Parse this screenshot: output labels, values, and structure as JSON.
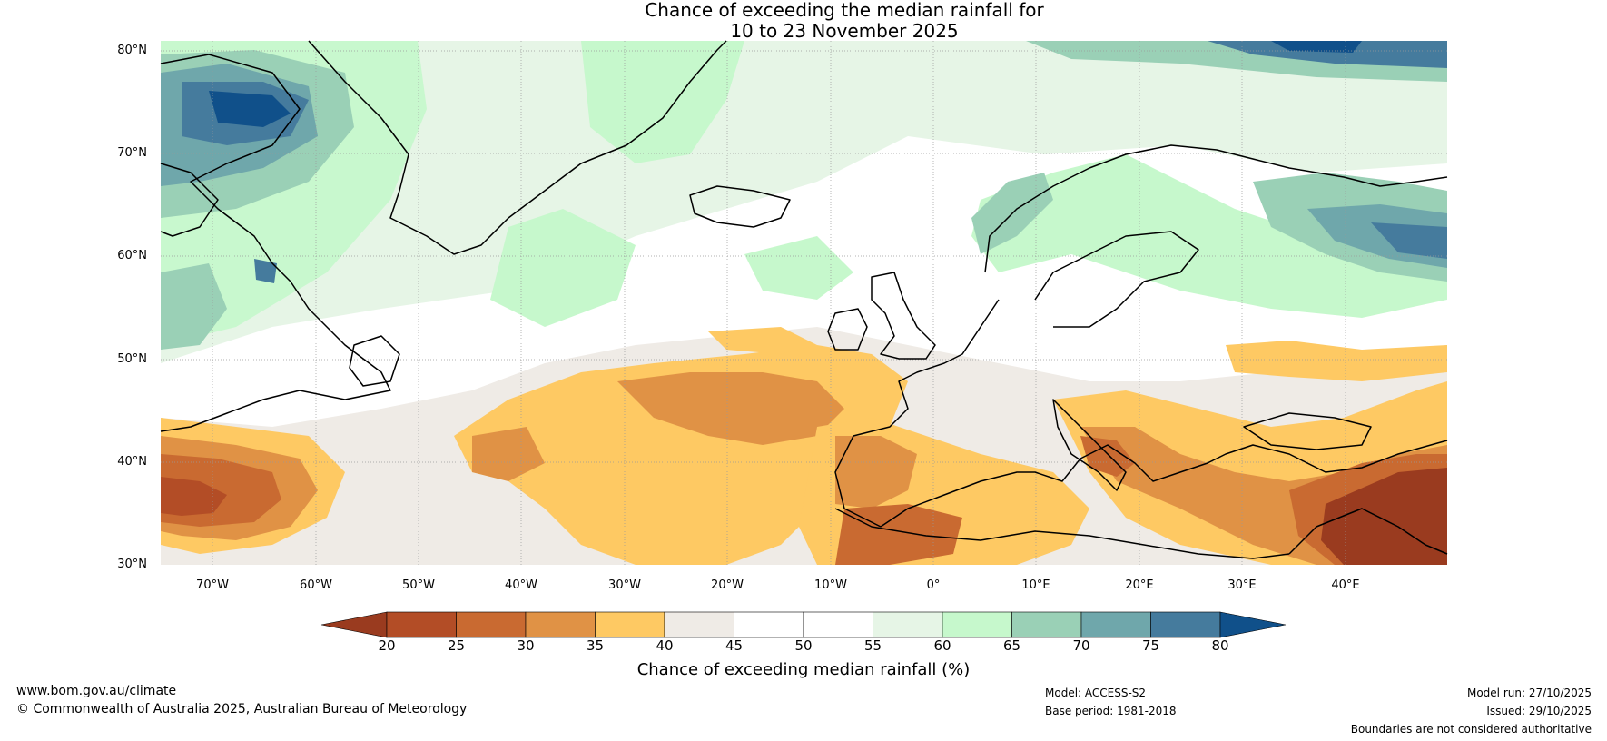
{
  "title": {
    "line1": "Chance of exceeding the median rainfall for",
    "line2": "10 to 23 November 2025"
  },
  "axes": {
    "lat_labels": [
      "80°N",
      "70°N",
      "60°N",
      "50°N",
      "40°N",
      "30°N"
    ],
    "lon_labels": [
      "70°W",
      "60°W",
      "50°W",
      "40°W",
      "30°W",
      "20°W",
      "10°W",
      "0°",
      "10°E",
      "20°E",
      "30°E",
      "40°E"
    ],
    "lon_range": [
      -75,
      50
    ],
    "lat_range": [
      30,
      81
    ]
  },
  "colorbar": {
    "title": "Chance of exceeding median rainfall (%)",
    "ticks": [
      "20",
      "25",
      "30",
      "35",
      "40",
      "45",
      "50",
      "55",
      "60",
      "65",
      "70",
      "75",
      "80"
    ],
    "colors": [
      "#9a3b1f",
      "#b34d26",
      "#c96a31",
      "#e09245",
      "#fec963",
      "#efebe6",
      "#ffffff",
      "#ffffff",
      "#e6f5e6",
      "#c6f8cc",
      "#9ad0b6",
      "#6fa7ab",
      "#457b9d",
      "#10508a"
    ],
    "under_color": "#9a3b1f",
    "over_color": "#10508a"
  },
  "footer": {
    "website": "www.bom.gov.au/climate",
    "copyright": "© Commonwealth of Australia 2025, Australian Bureau of Meteorology",
    "model": "Model: ACCESS-S2",
    "base_period": "Base period: 1981-2018",
    "model_run": "Model run: 27/10/2025",
    "issued": "Issued: 29/10/2025",
    "disclaimer": "Boundaries are not considered authoritative"
  }
}
